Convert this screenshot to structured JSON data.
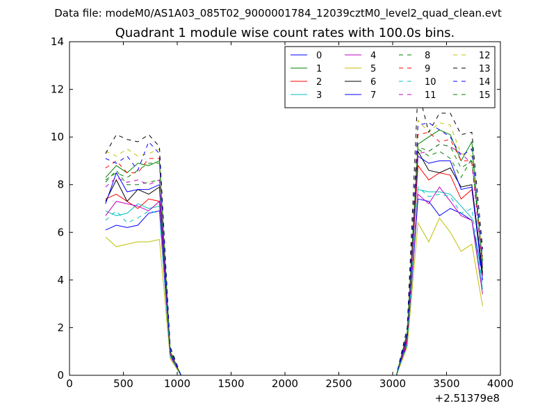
{
  "suptitle": "Data file: modeM0/AS1A03_085T02_9000001784_12039cztM0_level2_quad_clean.evt",
  "chart_data": {
    "type": "line",
    "title": "Quadrant 1 module wise count rates with 100.0s bins.",
    "xlabel": "",
    "ylabel": "",
    "x_offset_label": "+2.51379e8",
    "xlim": [
      0,
      4000
    ],
    "ylim": [
      0,
      14
    ],
    "xticks": [
      0,
      500,
      1000,
      1500,
      2000,
      2500,
      3000,
      3500,
      4000
    ],
    "xtick_labels": [
      "0",
      "500",
      "1000",
      "1500",
      "2000",
      "2500",
      "3000",
      "3500",
      "4000"
    ],
    "yticks": [
      0,
      2,
      4,
      6,
      8,
      10,
      12,
      14
    ],
    "ytick_labels": [
      "0",
      "2",
      "4",
      "6",
      "8",
      "10",
      "12",
      "14"
    ],
    "x": [
      335,
      435,
      535,
      635,
      735,
      835,
      935,
      1035,
      1135,
      1235,
      1335,
      1435,
      1535,
      1635,
      1735,
      1835,
      1935,
      2035,
      2135,
      2235,
      2335,
      2435,
      2535,
      2635,
      2735,
      2835,
      2935,
      3035,
      3135,
      3235,
      3335,
      3435,
      3535,
      3635,
      3735,
      3835
    ],
    "legend_position": "upper right",
    "legend_columns": 4,
    "series": [
      {
        "name": "0",
        "color": "#0000ff",
        "dash": "solid",
        "values": [
          6.1,
          6.3,
          6.2,
          6.3,
          6.8,
          6.9,
          0.8,
          0,
          0,
          0,
          0,
          0,
          0,
          0,
          0,
          0,
          0,
          0,
          0,
          0,
          0,
          0,
          0,
          0,
          0,
          0,
          0,
          0,
          1.3,
          7.4,
          7.3,
          6.7,
          7.0,
          6.8,
          6.5,
          4.2
        ]
      },
      {
        "name": "1",
        "color": "#008000",
        "dash": "solid",
        "values": [
          8.3,
          8.8,
          8.5,
          8.9,
          8.8,
          9.0,
          1.0,
          0,
          0,
          0,
          0,
          0,
          0,
          0,
          0,
          0,
          0,
          0,
          0,
          0,
          0,
          0,
          0,
          0,
          0,
          0,
          0,
          0,
          1.8,
          9.7,
          10.0,
          10.3,
          10.1,
          9.0,
          9.8,
          4.5
        ]
      },
      {
        "name": "2",
        "color": "#ff0000",
        "dash": "solid",
        "values": [
          7.4,
          7.6,
          7.3,
          7.0,
          7.4,
          7.3,
          0.9,
          0,
          0,
          0,
          0,
          0,
          0,
          0,
          0,
          0,
          0,
          0,
          0,
          0,
          0,
          0,
          0,
          0,
          0,
          0,
          0,
          0,
          1.5,
          8.8,
          8.2,
          8.5,
          8.4,
          7.4,
          7.8,
          4.2
        ]
      },
      {
        "name": "3",
        "color": "#00bfbf",
        "dash": "solid",
        "values": [
          6.9,
          6.7,
          6.8,
          7.2,
          7.0,
          7.1,
          0.8,
          0,
          0,
          0,
          0,
          0,
          0,
          0,
          0,
          0,
          0,
          0,
          0,
          0,
          0,
          0,
          0,
          0,
          0,
          0,
          0,
          0,
          1.4,
          7.8,
          7.7,
          7.7,
          7.6,
          7.1,
          6.6,
          3.6
        ]
      },
      {
        "name": "4",
        "color": "#bf00bf",
        "dash": "solid",
        "values": [
          6.7,
          7.3,
          7.2,
          7.1,
          6.9,
          7.3,
          0.8,
          0,
          0,
          0,
          0,
          0,
          0,
          0,
          0,
          0,
          0,
          0,
          0,
          0,
          0,
          0,
          0,
          0,
          0,
          0,
          0,
          0,
          1.4,
          7.6,
          7.2,
          7.9,
          7.3,
          6.7,
          6.5,
          3.4
        ]
      },
      {
        "name": "5",
        "color": "#bfbf00",
        "dash": "solid",
        "values": [
          5.8,
          5.4,
          5.5,
          5.6,
          5.6,
          5.7,
          0.7,
          0,
          0,
          0,
          0,
          0,
          0,
          0,
          0,
          0,
          0,
          0,
          0,
          0,
          0,
          0,
          0,
          0,
          0,
          0,
          0,
          0,
          1.2,
          6.4,
          5.6,
          6.6,
          6.0,
          5.2,
          5.5,
          2.9
        ]
      },
      {
        "name": "6",
        "color": "#000000",
        "dash": "solid",
        "values": [
          7.3,
          8.2,
          7.3,
          7.8,
          7.6,
          7.9,
          0.9,
          0,
          0,
          0,
          0,
          0,
          0,
          0,
          0,
          0,
          0,
          0,
          0,
          0,
          0,
          0,
          0,
          0,
          0,
          0,
          0,
          0,
          1.6,
          9.4,
          8.6,
          8.5,
          8.7,
          7.9,
          8.0,
          4.3
        ]
      },
      {
        "name": "7",
        "color": "#0000ff",
        "dash": "solid",
        "values": [
          7.2,
          8.5,
          7.7,
          7.8,
          7.8,
          8.0,
          0.9,
          0,
          0,
          0,
          0,
          0,
          0,
          0,
          0,
          0,
          0,
          0,
          0,
          0,
          0,
          0,
          0,
          0,
          0,
          0,
          0,
          0,
          1.6,
          9.2,
          8.9,
          9.0,
          9.0,
          7.8,
          7.9,
          4.0
        ]
      },
      {
        "name": "8",
        "color": "#008000",
        "dash": "dashed",
        "values": [
          8.1,
          8.6,
          8.0,
          8.0,
          8.1,
          8.2,
          1.0,
          0,
          0,
          0,
          0,
          0,
          0,
          0,
          0,
          0,
          0,
          0,
          0,
          0,
          0,
          0,
          0,
          0,
          0,
          0,
          0,
          0,
          1.7,
          9.5,
          9.2,
          9.4,
          9.1,
          8.3,
          9.1,
          4.6
        ]
      },
      {
        "name": "9",
        "color": "#ff0000",
        "dash": "dashed",
        "values": [
          8.7,
          9.0,
          8.5,
          8.5,
          9.1,
          9.1,
          1.1,
          0,
          0,
          0,
          0,
          0,
          0,
          0,
          0,
          0,
          0,
          0,
          0,
          0,
          0,
          0,
          0,
          0,
          0,
          0,
          0,
          0,
          1.8,
          10.1,
          10.2,
          9.8,
          9.9,
          9.0,
          9.0,
          4.8
        ]
      },
      {
        "name": "10",
        "color": "#00bfbf",
        "dash": "dashed",
        "values": [
          6.5,
          6.9,
          6.4,
          6.6,
          6.9,
          6.8,
          0.8,
          0,
          0,
          0,
          0,
          0,
          0,
          0,
          0,
          0,
          0,
          0,
          0,
          0,
          0,
          0,
          0,
          0,
          0,
          0,
          0,
          0,
          1.3,
          7.9,
          7.5,
          7.6,
          7.5,
          6.8,
          7.0,
          3.8
        ]
      },
      {
        "name": "11",
        "color": "#bf00bf",
        "dash": "dashed",
        "values": [
          7.9,
          8.3,
          8.1,
          8.2,
          8.0,
          8.2,
          0.9,
          0,
          0,
          0,
          0,
          0,
          0,
          0,
          0,
          0,
          0,
          0,
          0,
          0,
          0,
          0,
          0,
          0,
          0,
          0,
          0,
          0,
          1.6,
          9.3,
          9.4,
          9.7,
          9.6,
          9.3,
          8.9,
          4.5
        ]
      },
      {
        "name": "12",
        "color": "#bfbf00",
        "dash": "dashed",
        "values": [
          9.4,
          9.2,
          9.5,
          9.2,
          9.3,
          9.5,
          1.1,
          0,
          0,
          0,
          0,
          0,
          0,
          0,
          0,
          0,
          0,
          0,
          0,
          0,
          0,
          0,
          0,
          0,
          0,
          0,
          0,
          0,
          1.9,
          10.7,
          10.2,
          10.6,
          10.5,
          9.3,
          9.2,
          4.9
        ]
      },
      {
        "name": "13",
        "color": "#000000",
        "dash": "dashed",
        "values": [
          9.3,
          10.1,
          9.9,
          9.8,
          10.1,
          9.6,
          1.2,
          0,
          0,
          0,
          0,
          0,
          0,
          0,
          0,
          0,
          0,
          0,
          0,
          0,
          0,
          0,
          0,
          0,
          0,
          0,
          0,
          0,
          2.0,
          12.0,
          10.2,
          11.0,
          11.0,
          10.1,
          10.2,
          5.3
        ]
      },
      {
        "name": "14",
        "color": "#0000ff",
        "dash": "dashed",
        "values": [
          9.1,
          8.9,
          9.2,
          8.6,
          9.8,
          9.3,
          1.1,
          0,
          0,
          0,
          0,
          0,
          0,
          0,
          0,
          0,
          0,
          0,
          0,
          0,
          0,
          0,
          0,
          0,
          0,
          0,
          0,
          0,
          1.8,
          10.5,
          10.6,
          10.3,
          10.0,
          9.2,
          9.5,
          5.0
        ]
      },
      {
        "name": "15",
        "color": "#008000",
        "dash": "dashed",
        "values": [
          8.2,
          8.5,
          8.3,
          8.6,
          8.9,
          8.9,
          1.0,
          0,
          0,
          0,
          0,
          0,
          0,
          0,
          0,
          0,
          0,
          0,
          0,
          0,
          0,
          0,
          0,
          0,
          0,
          0,
          0,
          0,
          1.7,
          9.6,
          9.4,
          9.7,
          9.6,
          8.7,
          9.0,
          4.8
        ]
      }
    ]
  }
}
